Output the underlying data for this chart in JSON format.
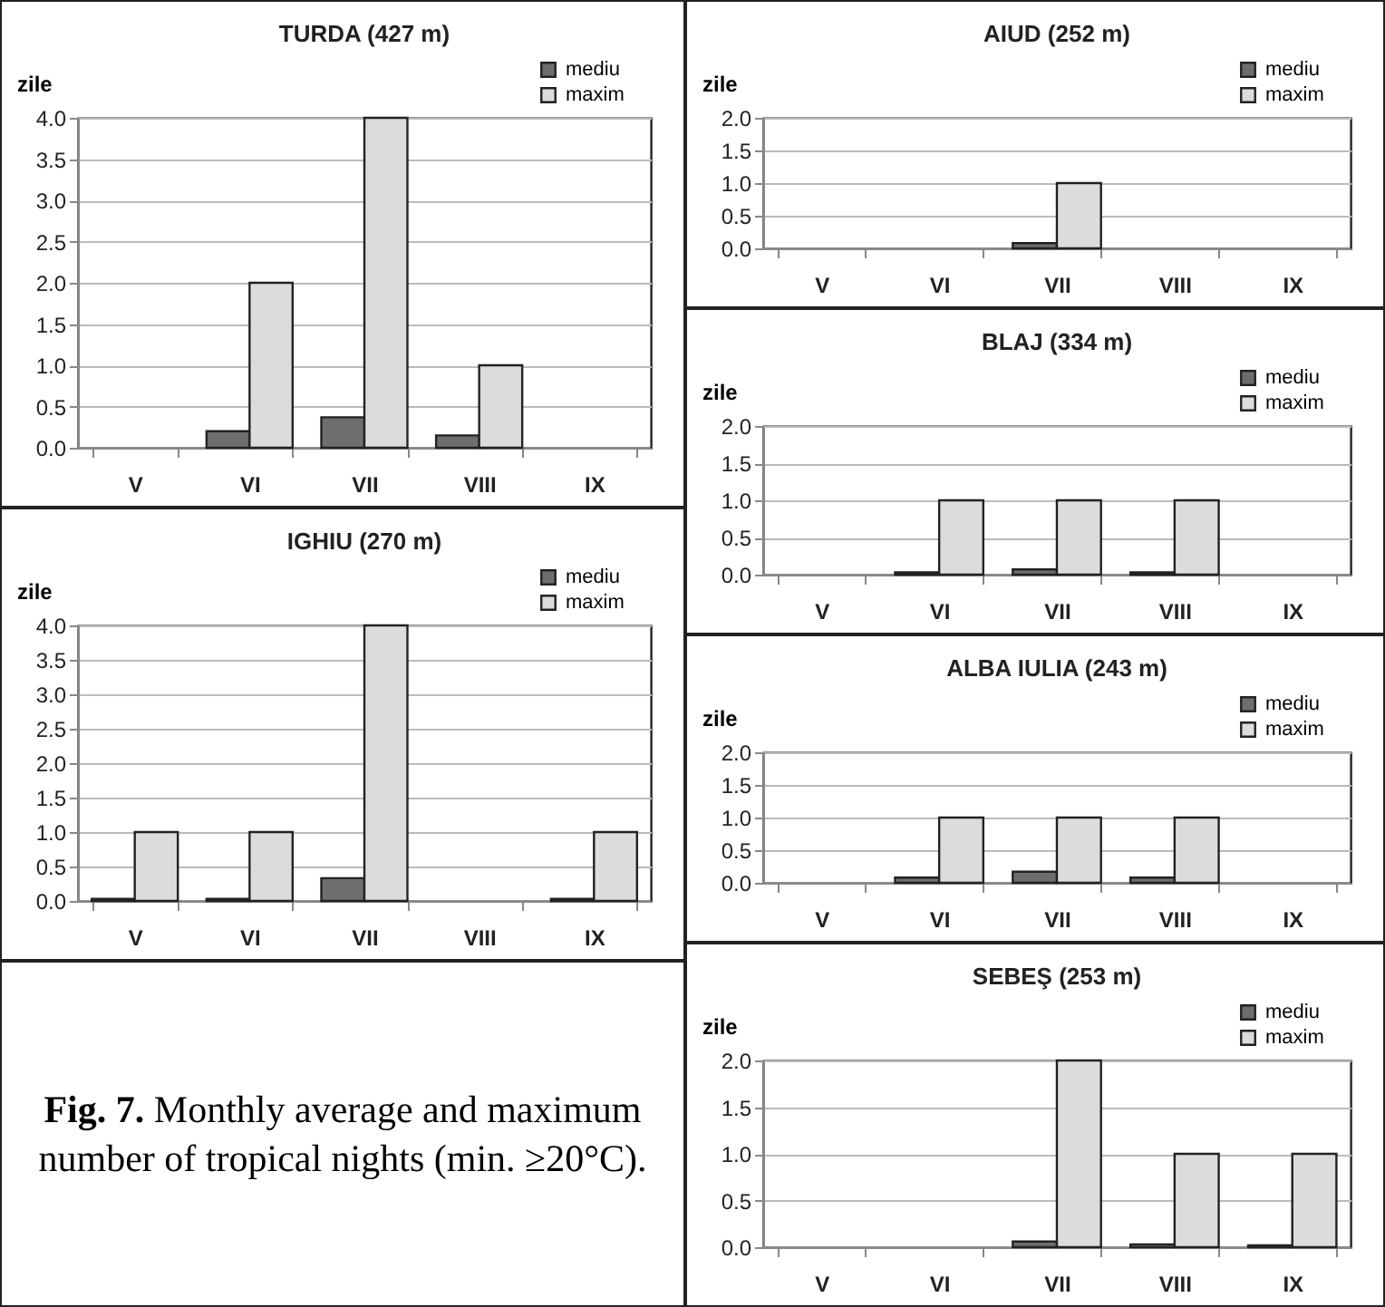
{
  "chart_data": [
    {
      "type": "bar",
      "title": "TURDA (427 m)",
      "ylabel": "zile",
      "categories": [
        "V",
        "VI",
        "VII",
        "VIII",
        "IX"
      ],
      "ylim": [
        0,
        4
      ],
      "yticks": [
        {
          "value": 0,
          "label": "0.0"
        },
        0.5,
        {
          "value": 1,
          "label": "1.0"
        },
        1.5,
        {
          "value": 2,
          "label": "2.0"
        },
        2.5,
        {
          "value": 3,
          "label": "3.0"
        },
        3.5,
        {
          "value": 4,
          "label": "4.0"
        }
      ],
      "grid": "y",
      "legend": "top right",
      "series": [
        {
          "name": "mediu",
          "color": "#6e6e6e",
          "values": [
            0,
            0.2,
            0.37,
            0.15,
            0
          ]
        },
        {
          "name": "maxim",
          "color": "#dcdcdc",
          "values": [
            0,
            2,
            4,
            1,
            0
          ]
        }
      ]
    },
    {
      "type": "bar",
      "title": "AIUD (252 m)",
      "ylabel": "zile",
      "categories": [
        "V",
        "VI",
        "VII",
        "VIII",
        "IX"
      ],
      "ylim": [
        0,
        2
      ],
      "yticks": [
        {
          "value": 0,
          "label": "0.0"
        },
        0.5,
        {
          "value": 1,
          "label": "1.0"
        },
        1.5,
        {
          "value": 2,
          "label": "2.0"
        }
      ],
      "grid": "y",
      "legend": "top right",
      "series": [
        {
          "name": "mediu",
          "color": "#6e6e6e",
          "values": [
            0,
            0,
            0.08,
            0,
            0
          ]
        },
        {
          "name": "maxim",
          "color": "#dcdcdc",
          "values": [
            0,
            0,
            1,
            0,
            0
          ]
        }
      ]
    },
    {
      "type": "bar",
      "title": "BLAJ (334 m)",
      "ylabel": "zile",
      "categories": [
        "V",
        "VI",
        "VII",
        "VIII",
        "IX"
      ],
      "ylim": [
        0,
        2
      ],
      "yticks": [
        {
          "value": 0,
          "label": "0.0"
        },
        0.5,
        {
          "value": 1,
          "label": "1.0"
        },
        1.5,
        {
          "value": 2,
          "label": "2.0"
        }
      ],
      "grid": "y",
      "legend": "top right",
      "series": [
        {
          "name": "mediu",
          "color": "#6e6e6e",
          "values": [
            0,
            0.03,
            0.07,
            0.03,
            0
          ]
        },
        {
          "name": "maxim",
          "color": "#dcdcdc",
          "values": [
            0,
            1,
            1,
            1,
            0
          ]
        }
      ]
    },
    {
      "type": "bar",
      "title": "IGHIU (270 m)",
      "ylabel": "zile",
      "categories": [
        "V",
        "VI",
        "VII",
        "VIII",
        "IX"
      ],
      "ylim": [
        0,
        4
      ],
      "yticks": [
        {
          "value": 0,
          "label": "0.0"
        },
        0.5,
        {
          "value": 1,
          "label": "1.0"
        },
        1.5,
        {
          "value": 2,
          "label": "2.0"
        },
        2.5,
        {
          "value": 3,
          "label": "3.0"
        },
        3.5,
        {
          "value": 4,
          "label": "4.0"
        }
      ],
      "grid": "y",
      "legend": "top right",
      "series": [
        {
          "name": "mediu",
          "color": "#6e6e6e",
          "values": [
            0.03,
            0.03,
            0.33,
            0,
            0.03
          ]
        },
        {
          "name": "maxim",
          "color": "#dcdcdc",
          "values": [
            1,
            1,
            4,
            0,
            1
          ]
        }
      ]
    },
    {
      "type": "bar",
      "title": "ALBA IULIA (243 m)",
      "ylabel": "zile",
      "categories": [
        "V",
        "VI",
        "VII",
        "VIII",
        "IX"
      ],
      "ylim": [
        0,
        2
      ],
      "yticks": [
        {
          "value": 0,
          "label": "0.0"
        },
        0.5,
        {
          "value": 1,
          "label": "1.0"
        },
        1.5,
        {
          "value": 2,
          "label": "2.0"
        }
      ],
      "grid": "y",
      "legend": "top right",
      "series": [
        {
          "name": "mediu",
          "color": "#6e6e6e",
          "values": [
            0,
            0.08,
            0.17,
            0.08,
            0
          ]
        },
        {
          "name": "maxim",
          "color": "#dcdcdc",
          "values": [
            0,
            1,
            1,
            1,
            0
          ]
        }
      ]
    },
    {
      "type": "other",
      "title": "Fig. 7.",
      "subtitle": "Monthly average and maximum number of tropical nights (min. ≥20°C)."
    },
    {
      "type": "bar",
      "title": "SEBEŞ (253 m)",
      "ylabel": "zile",
      "categories": [
        "V",
        "VI",
        "VII",
        "VIII",
        "IX"
      ],
      "ylim": [
        0,
        2
      ],
      "yticks": [
        {
          "value": 0,
          "label": "0.0"
        },
        0.5,
        {
          "value": 1,
          "label": "1.0"
        },
        1.5,
        {
          "value": 2,
          "label": "2.0"
        }
      ],
      "grid": "y",
      "legend": "top right",
      "series": [
        {
          "name": "mediu",
          "color": "#6e6e6e",
          "values": [
            0,
            0,
            0.06,
            0.03,
            0.02
          ]
        },
        {
          "name": "maxim",
          "color": "#dcdcdc",
          "values": [
            0,
            0,
            2,
            1,
            1
          ]
        }
      ]
    }
  ]
}
